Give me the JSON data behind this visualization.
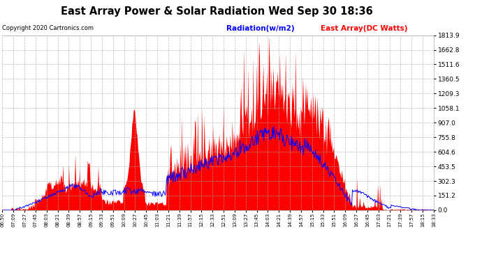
{
  "title": "East Array Power & Solar Radiation Wed Sep 30 18:36",
  "copyright": "Copyright 2020 Cartronics.com",
  "legend_radiation": "Radiation(w/m2)",
  "legend_east": "East Array(DC Watts)",
  "legend_radiation_color": "#0000ff",
  "legend_east_color": "#ff0000",
  "y_max": 1813.9,
  "y_ticks": [
    0.0,
    151.2,
    302.3,
    453.5,
    604.6,
    755.8,
    907.0,
    1058.1,
    1209.3,
    1360.5,
    1511.6,
    1662.8,
    1813.9
  ],
  "x_labels": [
    "06:50",
    "07:09",
    "07:27",
    "07:45",
    "08:03",
    "08:21",
    "08:39",
    "08:57",
    "09:15",
    "09:33",
    "09:51",
    "10:09",
    "10:27",
    "10:45",
    "11:03",
    "11:21",
    "11:39",
    "11:57",
    "12:15",
    "12:33",
    "12:51",
    "13:09",
    "13:27",
    "13:45",
    "14:03",
    "14:21",
    "14:39",
    "14:57",
    "15:15",
    "15:33",
    "15:51",
    "16:09",
    "16:27",
    "16:45",
    "17:03",
    "17:21",
    "17:39",
    "17:57",
    "18:15",
    "18:33"
  ],
  "background_color": "#ffffff",
  "plot_bg_color": "#ffffff",
  "grid_color": "#aaaaaa",
  "radiation_color": "#0000ff",
  "east_array_color": "#ff0000",
  "title_color": "#000000",
  "copyright_color": "#000000",
  "tick_color": "#000000"
}
